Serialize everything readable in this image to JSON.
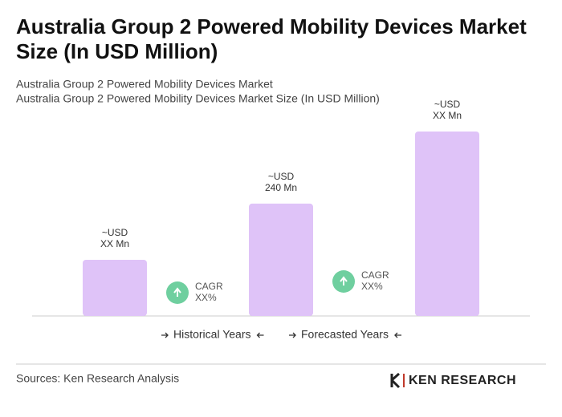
{
  "chart_data": {
    "type": "bar",
    "title": "Australia Group 2 Powered Mobility Devices Market Size (In USD Million)",
    "title_lines": [
      "Australia Group 2 Powered Mobility Devices Market",
      "Size (In USD Million)"
    ],
    "subtitle_lines": [
      "Australia Group 2 Powered Mobility Devices Market",
      "Australia Group 2 Powered Mobility Devices Market Size (In USD Million)"
    ],
    "categories": [
      null,
      null,
      null
    ],
    "values": [
      120,
      240,
      394
    ],
    "value_labels": [
      [
        "~USD",
        "XX Mn"
      ],
      [
        "~USD",
        "240 Mn"
      ],
      [
        "~USD",
        "XX Mn"
      ]
    ],
    "color": "#dfc3f8",
    "cagr_labels": [
      [
        "CAGR",
        "XX%"
      ],
      [
        "CAGR",
        "XX%"
      ]
    ],
    "cagr_color": "#6fcf9f",
    "legend": [
      "Historical Years",
      "Forecasted Years"
    ],
    "source": "Sources: Ken Research Analysis",
    "logo": "KEN RESEARCH"
  }
}
